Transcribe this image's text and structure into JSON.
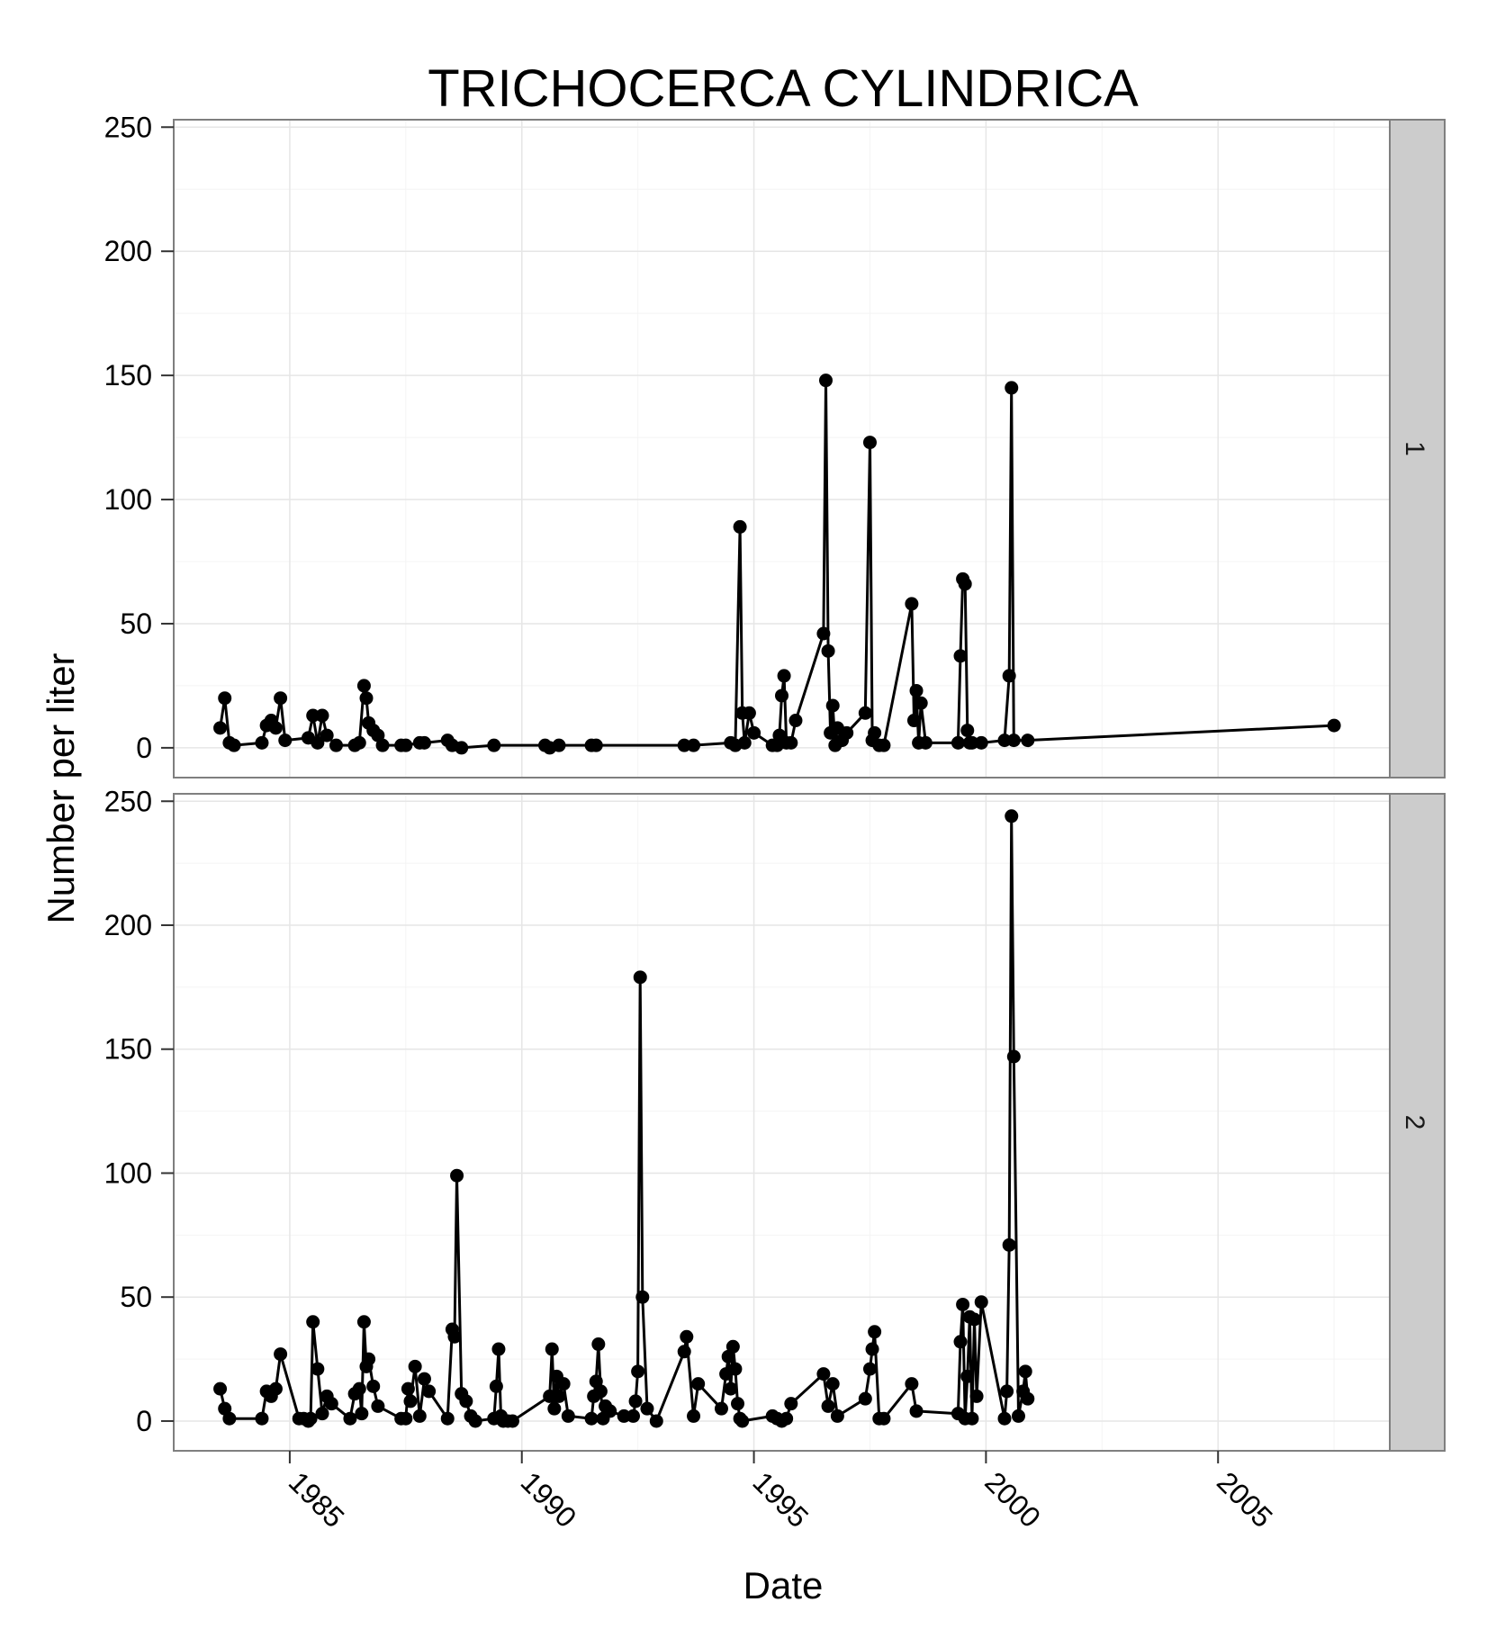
{
  "chart_data": {
    "type": "line",
    "title": "TRICHOCERCA CYLINDRICA",
    "xlabel": "Date",
    "ylabel": "Number per liter",
    "xlim": [
      1982.5,
      2008.7
    ],
    "ylim": [
      -12,
      253
    ],
    "x_ticks": [
      "1985",
      "1990",
      "1995",
      "2000",
      "2005"
    ],
    "y_ticks": [
      "0",
      "50",
      "100",
      "150",
      "200",
      "250"
    ],
    "grid": true,
    "markers": true,
    "panels": [
      {
        "strip_label": "1",
        "x": [
          1983.5,
          1983.6,
          1983.7,
          1983.8,
          1984.4,
          1984.5,
          1984.6,
          1984.7,
          1984.8,
          1984.9,
          1985.4,
          1985.5,
          1985.6,
          1985.7,
          1985.8,
          1986.0,
          1986.4,
          1986.5,
          1986.6,
          1986.65,
          1986.7,
          1986.8,
          1986.9,
          1987.0,
          1987.4,
          1987.5,
          1987.8,
          1987.9,
          1988.4,
          1988.5,
          1988.7,
          1989.4,
          1990.5,
          1990.6,
          1990.8,
          1991.5,
          1991.6,
          1993.5,
          1993.7,
          1994.5,
          1994.6,
          1994.7,
          1994.75,
          1994.8,
          1994.9,
          1995.0,
          1995.4,
          1995.5,
          1995.55,
          1995.6,
          1995.65,
          1995.7,
          1995.8,
          1995.9,
          1996.5,
          1996.55,
          1996.6,
          1996.65,
          1996.7,
          1996.75,
          1996.8,
          1996.9,
          1997.0,
          1997.4,
          1997.5,
          1997.55,
          1997.6,
          1997.7,
          1997.8,
          1998.4,
          1998.45,
          1998.5,
          1998.55,
          1998.6,
          1998.7,
          1999.4,
          1999.45,
          1999.5,
          1999.55,
          1999.6,
          1999.65,
          1999.7,
          1999.9,
          2000.4,
          2000.5,
          2000.55,
          2000.6,
          2000.9,
          2007.5
        ],
        "y": [
          8,
          20,
          2,
          1,
          2,
          9,
          11,
          8,
          20,
          3,
          4,
          13,
          2,
          13,
          5,
          1,
          1,
          2,
          25,
          20,
          10,
          7,
          5,
          1,
          1,
          1,
          2,
          2,
          3,
          1,
          0,
          1,
          1,
          0,
          1,
          1,
          1,
          1,
          1,
          2,
          1,
          89,
          14,
          2,
          14,
          6,
          1,
          1,
          5,
          21,
          29,
          2,
          2,
          11,
          46,
          148,
          39,
          6,
          17,
          1,
          8,
          3,
          6,
          14,
          123,
          3,
          6,
          1,
          1,
          58,
          11,
          23,
          2,
          18,
          2,
          2,
          37,
          68,
          66,
          7,
          2,
          2,
          2,
          3,
          29,
          145,
          3,
          3,
          9
        ]
      },
      {
        "strip_label": "2",
        "x": [
          1983.5,
          1983.6,
          1983.7,
          1984.4,
          1984.5,
          1984.6,
          1984.7,
          1984.8,
          1985.2,
          1985.3,
          1985.4,
          1985.45,
          1985.5,
          1985.6,
          1985.7,
          1985.8,
          1985.9,
          1986.3,
          1986.4,
          1986.5,
          1986.55,
          1986.6,
          1986.65,
          1986.7,
          1986.8,
          1986.9,
          1987.4,
          1987.5,
          1987.55,
          1987.6,
          1987.7,
          1987.8,
          1987.9,
          1988.0,
          1988.4,
          1988.5,
          1988.55,
          1988.6,
          1988.7,
          1988.8,
          1988.9,
          1989.0,
          1989.4,
          1989.45,
          1989.5,
          1989.55,
          1989.6,
          1989.7,
          1989.8,
          1990.6,
          1990.65,
          1990.7,
          1990.75,
          1990.8,
          1990.9,
          1991.0,
          1991.5,
          1991.55,
          1991.6,
          1991.65,
          1991.7,
          1991.75,
          1991.8,
          1991.9,
          1992.2,
          1992.4,
          1992.45,
          1992.5,
          1992.55,
          1992.6,
          1992.7,
          1992.9,
          1993.5,
          1993.55,
          1993.7,
          1993.8,
          1994.3,
          1994.4,
          1994.45,
          1994.5,
          1994.55,
          1994.6,
          1994.65,
          1994.7,
          1994.75,
          1995.4,
          1995.5,
          1995.6,
          1995.7,
          1995.8,
          1996.5,
          1996.6,
          1996.7,
          1996.8,
          1997.4,
          1997.5,
          1997.55,
          1997.6,
          1997.7,
          1997.8,
          1998.4,
          1998.5,
          1999.4,
          1999.45,
          1999.5,
          1999.55,
          1999.6,
          1999.65,
          1999.7,
          1999.75,
          1999.8,
          1999.9,
          2000.4,
          2000.45,
          2000.5,
          2000.55,
          2000.6,
          2000.7,
          2000.8,
          2000.85,
          2000.9
        ],
        "y": [
          13,
          5,
          1,
          1,
          12,
          10,
          13,
          27,
          1,
          1,
          0,
          1,
          40,
          21,
          3,
          10,
          7,
          1,
          11,
          13,
          3,
          40,
          22,
          25,
          14,
          6,
          1,
          1,
          13,
          8,
          22,
          2,
          17,
          12,
          1,
          37,
          34,
          99,
          11,
          8,
          2,
          0,
          1,
          14,
          29,
          2,
          0,
          0,
          0,
          10,
          29,
          5,
          18,
          10,
          15,
          2,
          1,
          10,
          16,
          31,
          12,
          1,
          6,
          4,
          2,
          2,
          8,
          20,
          179,
          50,
          5,
          0,
          28,
          34,
          2,
          15,
          5,
          19,
          26,
          13,
          30,
          21,
          7,
          1,
          0,
          2,
          1,
          0,
          1,
          7,
          19,
          6,
          15,
          2,
          9,
          21,
          29,
          36,
          1,
          1,
          15,
          4,
          3,
          32,
          47,
          1,
          18,
          42,
          1,
          41,
          10,
          48,
          1,
          12,
          71,
          244,
          147,
          2,
          12,
          20,
          9
        ]
      }
    ]
  }
}
